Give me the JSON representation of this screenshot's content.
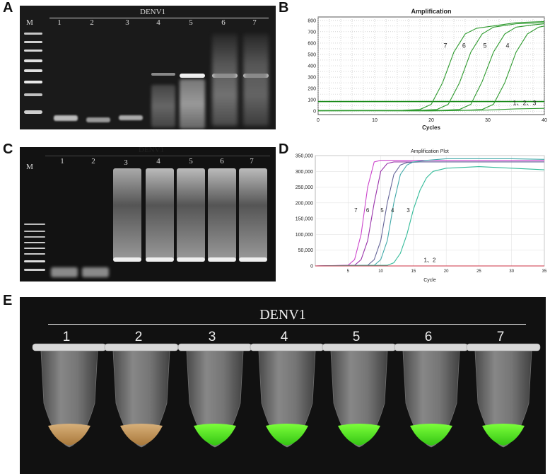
{
  "panels": {
    "A": {
      "letter": "A",
      "title": "DENV1",
      "marker_label": "M",
      "lanes": [
        "1",
        "2",
        "3",
        "4",
        "5",
        "6",
        "7"
      ]
    },
    "B": {
      "letter": "B",
      "chart_data": {
        "type": "line",
        "title": "Amplification",
        "xlabel": "Cycles",
        "ylabel": "",
        "xlim": [
          0,
          40
        ],
        "ylim": [
          -30,
          830
        ],
        "xticks": [
          0,
          10,
          20,
          30,
          40
        ],
        "yticks": [
          0,
          100,
          200,
          300,
          400,
          500,
          600,
          700,
          800
        ],
        "threshold": 85,
        "series": [
          {
            "label": "7",
            "x": [
              0,
              15,
              18,
              20,
              22,
              24,
              26,
              28,
              35,
              40
            ],
            "y": [
              5,
              8,
              15,
              60,
              250,
              520,
              680,
              730,
              780,
              790
            ]
          },
          {
            "label": "6",
            "x": [
              0,
              18,
              21,
              23,
              25,
              27,
              29,
              31,
              35,
              40
            ],
            "y": [
              5,
              8,
              15,
              60,
              250,
              520,
              680,
              740,
              770,
              780
            ]
          },
          {
            "label": "5",
            "x": [
              0,
              22,
              25,
              27,
              29,
              31,
              33,
              35,
              38,
              40
            ],
            "y": [
              5,
              8,
              15,
              60,
              260,
              520,
              680,
              740,
              760,
              770
            ]
          },
          {
            "label": "4",
            "x": [
              0,
              26,
              29,
              31,
              33,
              35,
              37,
              39,
              40
            ],
            "y": [
              5,
              8,
              15,
              60,
              250,
              520,
              680,
              740,
              750
            ]
          },
          {
            "label": "1、2、3",
            "x": [
              0,
              10,
              20,
              30,
              35,
              40
            ],
            "y": [
              2,
              3,
              2,
              10,
              20,
              25
            ]
          }
        ]
      }
    },
    "C": {
      "letter": "C",
      "title": "DENV1",
      "marker_label": "M",
      "lanes": [
        "1",
        "2",
        "3",
        "4",
        "5",
        "6",
        "7"
      ]
    },
    "D": {
      "letter": "D",
      "chart_data": {
        "type": "line",
        "title": "Amplification Plot",
        "xlabel": "Cycle",
        "ylabel": "",
        "xlim": [
          0,
          35
        ],
        "ylim": [
          0,
          350000
        ],
        "xticks": [
          5,
          10,
          15,
          20,
          25,
          30,
          35
        ],
        "yticks": [
          0,
          50000,
          100000,
          150000,
          200000,
          250000,
          300000,
          350000
        ],
        "ytick_labels": [
          "0",
          "50,000",
          "100,000",
          "150,000",
          "200,000",
          "250,000",
          "300,000",
          "350,000"
        ],
        "series": [
          {
            "label": "7",
            "x": [
              0,
              5,
              6,
              7,
              8,
              9,
              10,
              12,
              15,
              20,
              25,
              30,
              35
            ],
            "y": [
              0,
              2000,
              20000,
              100000,
              250000,
              330000,
              335000,
              335000,
              335000,
              335000,
              335000,
              335000,
              335000
            ]
          },
          {
            "label": "6",
            "x": [
              0,
              6,
              7,
              8,
              9,
              10,
              11,
              12,
              15,
              20,
              25,
              30,
              35
            ],
            "y": [
              0,
              2000,
              20000,
              80000,
              200000,
              300000,
              325000,
              330000,
              330000,
              330000,
              330000,
              330000,
              330000
            ]
          },
          {
            "label": "5",
            "x": [
              0,
              8,
              9,
              10,
              11,
              12,
              13,
              14,
              16,
              20,
              25,
              30,
              35
            ],
            "y": [
              0,
              2000,
              20000,
              80000,
              200000,
              290000,
              320000,
              328000,
              330000,
              330000,
              330000,
              330000,
              330000
            ]
          },
          {
            "label": "4",
            "x": [
              0,
              9,
              10,
              11,
              12,
              13,
              14,
              15,
              17,
              20,
              25,
              30,
              35
            ],
            "y": [
              0,
              2000,
              20000,
              80000,
              200000,
              290000,
              320000,
              330000,
              335000,
              340000,
              340000,
              340000,
              338000
            ]
          },
          {
            "label": "3",
            "x": [
              0,
              11,
              12,
              13,
              14,
              15,
              16,
              17,
              18,
              20,
              25,
              30,
              35
            ],
            "y": [
              0,
              2000,
              10000,
              40000,
              100000,
              180000,
              240000,
              280000,
              300000,
              310000,
              315000,
              310000,
              305000
            ]
          },
          {
            "label": "1、2",
            "x": [
              0,
              35
            ],
            "y": [
              0,
              0
            ]
          }
        ]
      }
    },
    "E": {
      "letter": "E",
      "title": "DENV1",
      "tubes": [
        "1",
        "2",
        "3",
        "4",
        "5",
        "6",
        "7"
      ]
    }
  }
}
